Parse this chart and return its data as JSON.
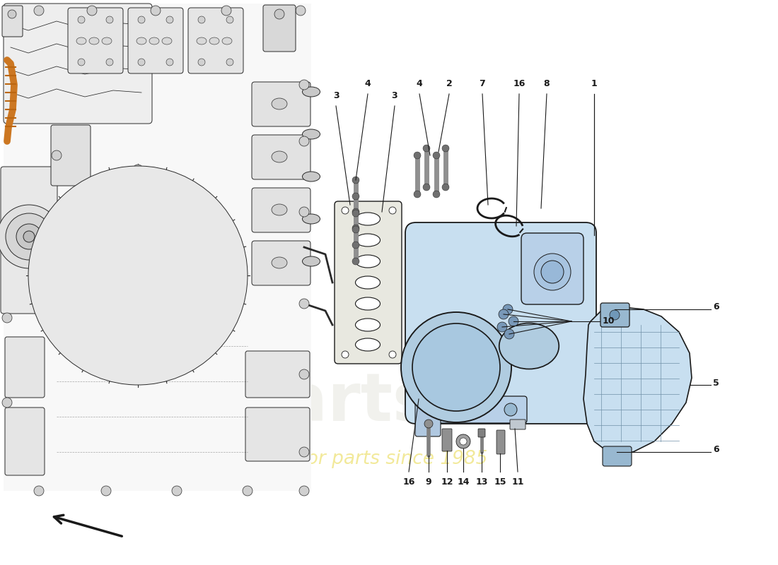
{
  "bg_color": "#ffffff",
  "dark": "#1a1a1a",
  "blue_light": "#c8dff0",
  "blue_mid": "#b0cce0",
  "blue_dark": "#90afc8",
  "engine_bg": "#f5f5f5",
  "engine_line": "#2a2a2a",
  "gasket_face": "#e8e8e0",
  "stud_gray": "#888888",
  "watermark_gray": "#d8d8cc",
  "watermark_yellow": "#e8d848",
  "label_pairs": [
    [
      "3",
      475,
      155
    ],
    [
      "4",
      520,
      138
    ],
    [
      "3",
      558,
      155
    ],
    [
      "4",
      593,
      138
    ],
    [
      "2",
      635,
      138
    ],
    [
      "7",
      682,
      138
    ],
    [
      "16",
      734,
      138
    ],
    [
      "8",
      773,
      138
    ],
    [
      "1",
      840,
      138
    ]
  ],
  "bot_label_pairs": [
    [
      "16",
      578,
      668
    ],
    [
      "9",
      608,
      668
    ],
    [
      "12",
      634,
      668
    ],
    [
      "14",
      658,
      668
    ],
    [
      "13",
      683,
      668
    ],
    [
      "15",
      708,
      668
    ],
    [
      "11",
      733,
      668
    ]
  ]
}
